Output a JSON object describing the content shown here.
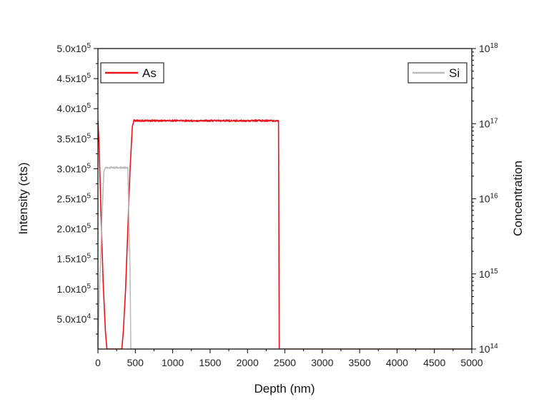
{
  "chart_data": {
    "type": "line",
    "xlabel": "Depth (nm)",
    "ylabel": "Intensity (cts)",
    "y2label": "Concentration",
    "xlim": [
      0,
      5000
    ],
    "ylim": [
      0,
      500000
    ],
    "y2lim": [
      100000000000000.0,
      1e+18
    ],
    "y2scale": "log",
    "grid": false,
    "x_ticks": [
      {
        "value": 0,
        "label": "0"
      },
      {
        "value": 500,
        "label": "500"
      },
      {
        "value": 1000,
        "label": "1000"
      },
      {
        "value": 1500,
        "label": "1500"
      },
      {
        "value": 2000,
        "label": "2000"
      },
      {
        "value": 2500,
        "label": "2500"
      },
      {
        "value": 3000,
        "label": "3000"
      },
      {
        "value": 3500,
        "label": "3500"
      },
      {
        "value": 4000,
        "label": "4000"
      },
      {
        "value": 4500,
        "label": "4500"
      },
      {
        "value": 5000,
        "label": "5000"
      }
    ],
    "y_ticks": [
      {
        "value": 50000,
        "mantissa": "5.0x10",
        "exp": "4"
      },
      {
        "value": 100000,
        "mantissa": "1.0x10",
        "exp": "5"
      },
      {
        "value": 150000,
        "mantissa": "1.5x10",
        "exp": "5"
      },
      {
        "value": 200000,
        "mantissa": "2.0x10",
        "exp": "5"
      },
      {
        "value": 250000,
        "mantissa": "2.5x10",
        "exp": "5"
      },
      {
        "value": 300000,
        "mantissa": "3.0x10",
        "exp": "5"
      },
      {
        "value": 350000,
        "mantissa": "3.5x10",
        "exp": "5"
      },
      {
        "value": 400000,
        "mantissa": "4.0x10",
        "exp": "5"
      },
      {
        "value": 450000,
        "mantissa": "4.5x10",
        "exp": "5"
      },
      {
        "value": 500000,
        "mantissa": "5.0x10",
        "exp": "5"
      }
    ],
    "y2_ticks": [
      {
        "value": 100000000000000.0,
        "base": "10",
        "exp": "14"
      },
      {
        "value": 1000000000000000.0,
        "base": "10",
        "exp": "15"
      },
      {
        "value": 1e+16,
        "base": "10",
        "exp": "16"
      },
      {
        "value": 1e+17,
        "base": "10",
        "exp": "17"
      },
      {
        "value": 1e+18,
        "base": "10",
        "exp": "18"
      }
    ],
    "series": [
      {
        "name": "As",
        "axis": "left",
        "color": "#e8141b",
        "x": [
          0,
          15,
          40,
          70,
          100,
          120,
          320,
          340,
          370,
          400,
          430,
          460,
          480,
          800,
          1200,
          1600,
          2000,
          2400,
          2415,
          2425,
          2440,
          5000
        ],
        "y": [
          380000,
          340000,
          230000,
          110000,
          30000,
          0,
          0,
          30000,
          100000,
          200000,
          300000,
          370000,
          380000,
          380000,
          380000,
          380000,
          380000,
          380000,
          380000,
          0,
          0,
          0
        ]
      },
      {
        "name": "Si",
        "axis": "right",
        "color": "#bdbdbd",
        "x": [
          0,
          20,
          40,
          60,
          80,
          100,
          380,
          400,
          430,
          440,
          5000
        ],
        "y": [
          100000000000000.0,
          600000000000000.0,
          2000000000000000.0,
          8000000000000000.0,
          2.3e+16,
          2.6e+16,
          2.6e+16,
          2.6e+16,
          1000000000000000.0,
          100000000000000.0,
          100000000000000.0
        ]
      }
    ],
    "legend": [
      {
        "name": "As",
        "placement": "top-left"
      },
      {
        "name": "Si",
        "placement": "top-right"
      }
    ]
  }
}
